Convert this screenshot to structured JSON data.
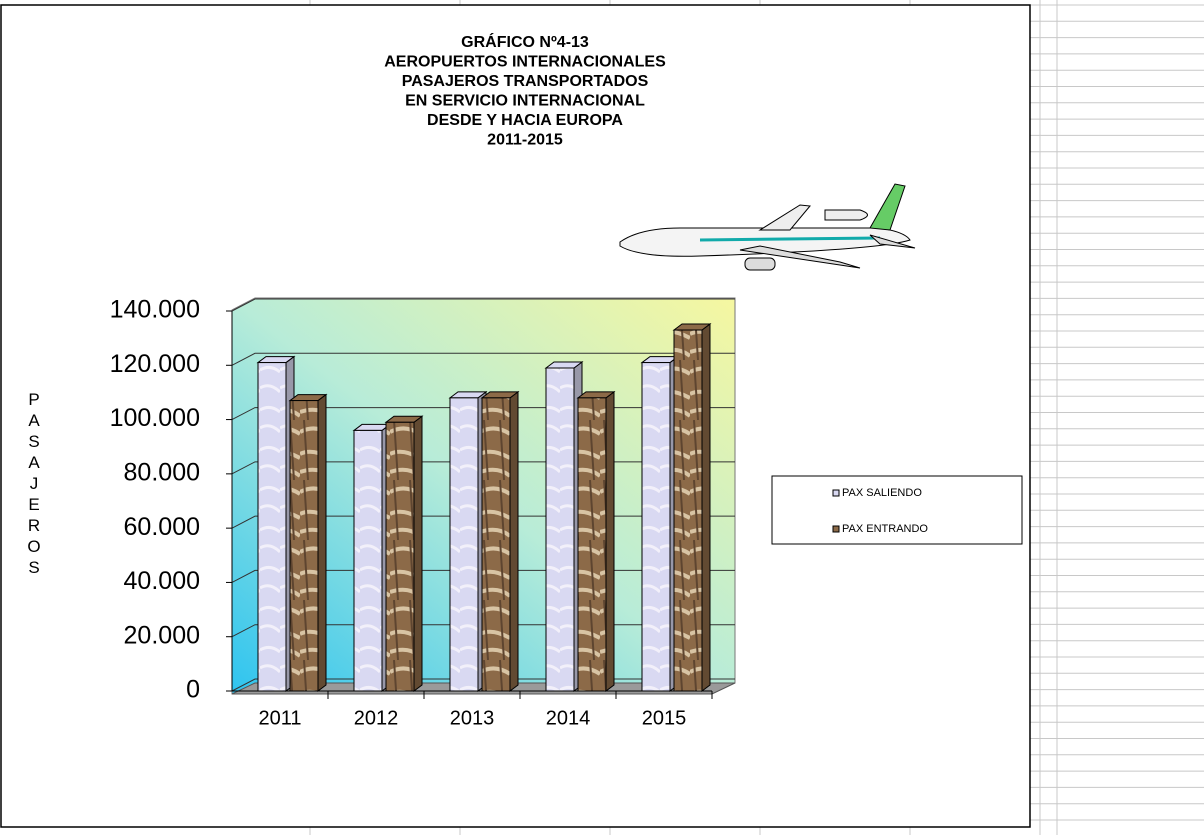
{
  "chart_data": {
    "type": "bar",
    "title": [
      "GRÁFICO Nº4-13",
      "AEROPUERTOS  INTERNACIONALES",
      "PASAJEROS TRANSPORTADOS",
      "EN SERVICIO INTERNACIONAL",
      "DESDE  Y HACIA EUROPA",
      "2011-2015"
    ],
    "y_label": "PASAJEROS",
    "categories": [
      "2011",
      "2012",
      "2013",
      "2014",
      "2015"
    ],
    "series": [
      {
        "name": "PAX SALIENDO",
        "color": "#d9d9f2",
        "values": [
          121000,
          96000,
          108000,
          119000,
          121000
        ]
      },
      {
        "name": "PAX ENTRANDO",
        "color": "#8c6a48",
        "values": [
          107000,
          99000,
          108000,
          108000,
          133000
        ]
      }
    ],
    "ylim": [
      0,
      140000
    ],
    "yticks": [
      0,
      {
        "value": 20000,
        "label": "20.000"
      },
      {
        "value": 40000,
        "label": "40.000"
      },
      {
        "value": 60000,
        "label": "60.000"
      },
      {
        "value": 80000,
        "label": "80.000"
      },
      {
        "value": 100000,
        "label": "100.000"
      },
      {
        "value": 120000,
        "label": "120.000"
      },
      {
        "value": 140000,
        "label": "140.000"
      }
    ],
    "grid": true,
    "legend": "right"
  }
}
